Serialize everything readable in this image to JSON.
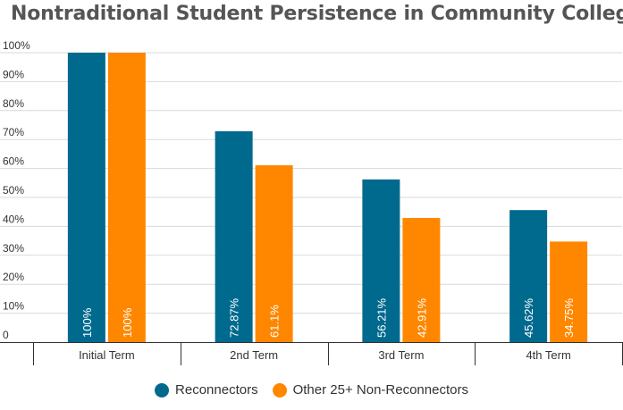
{
  "title": "Nontraditional Student Persistence in Community College",
  "colors": {
    "series1": "#006a8e",
    "series2": "#ff8700",
    "grid": "#d9d9d9",
    "axis": "#333333"
  },
  "chart_data": {
    "type": "bar",
    "title": "Nontraditional Student Persistence in Community College",
    "categories": [
      "Initial Term",
      "2nd Term",
      "3rd Term",
      "4th Term"
    ],
    "series": [
      {
        "name": "Reconnectors",
        "values": [
          100,
          72.87,
          56.21,
          45.62
        ],
        "labels": [
          "100%",
          "72.87%",
          "56.21%",
          "45.62%"
        ]
      },
      {
        "name": "Other 25+ Non-Reconnectors",
        "values": [
          100,
          61.1,
          42.91,
          34.75
        ],
        "labels": [
          "100%",
          "61.1%",
          "42.91%",
          "34.75%"
        ]
      }
    ],
    "ylim": [
      0,
      100
    ],
    "yticks": [
      "0",
      "10%",
      "20%",
      "30%",
      "40%",
      "50%",
      "60%",
      "70%",
      "80%",
      "90%",
      "100%"
    ],
    "grid": true,
    "legend_position": "bottom"
  }
}
